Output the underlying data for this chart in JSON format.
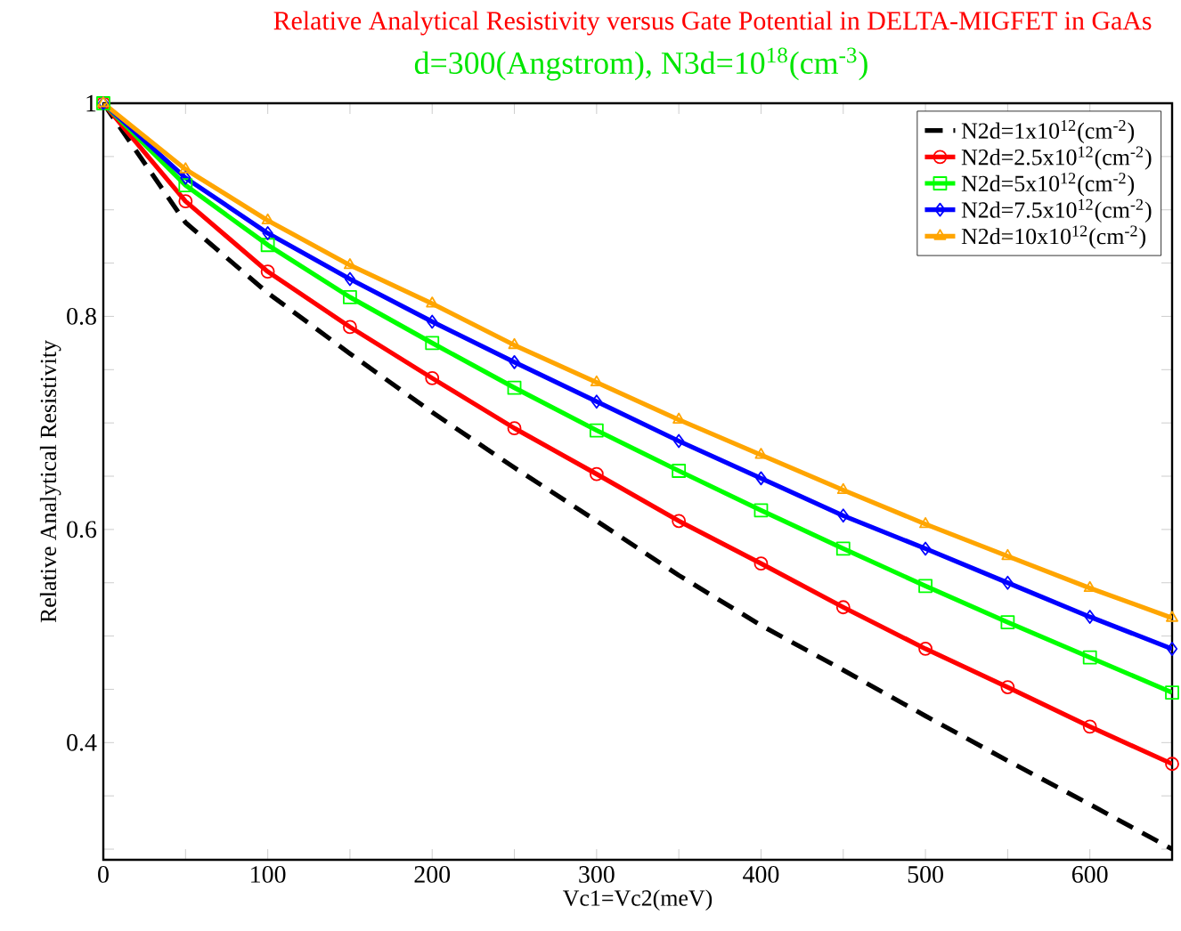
{
  "chart_data": {
    "type": "line",
    "title": "Relative Analytical Resistivity versus Gate Potential in DELTA-MIGFET in GaAs",
    "subtitle": "d=300(Angstrom), N3d=10$^{18}$(cm$^{-3}$)",
    "xlabel": "Vc1=Vc2(meV)",
    "ylabel": "Relative Analytical Resistivity",
    "x": [
      0,
      50,
      100,
      150,
      200,
      250,
      300,
      350,
      400,
      450,
      500,
      550,
      600,
      650
    ],
    "series": [
      {
        "name": "N2d=1x10$^{12}$(cm$^{-2}$)",
        "color": "#000000",
        "line_style": "dashed",
        "marker": "none",
        "values": [
          1,
          0.888,
          0.822,
          0.765,
          0.71,
          0.658,
          0.608,
          0.557,
          0.51,
          0.468,
          0.425,
          0.383,
          0.342,
          0.3
        ]
      },
      {
        "name": "N2d=2.5x10$^{12}$(cm$^{-2}$)",
        "color": "#ff0000",
        "line_style": "solid",
        "marker": "circle",
        "values": [
          1,
          0.908,
          0.842,
          0.79,
          0.742,
          0.695,
          0.652,
          0.608,
          0.568,
          0.527,
          0.488,
          0.452,
          0.415,
          0.38
        ]
      },
      {
        "name": "N2d=5x10$^{12}$(cm$^{-2}$)",
        "color": "#00ff00",
        "line_style": "solid",
        "marker": "square",
        "values": [
          1,
          0.923,
          0.867,
          0.818,
          0.775,
          0.733,
          0.693,
          0.655,
          0.618,
          0.582,
          0.547,
          0.513,
          0.48,
          0.447
        ]
      },
      {
        "name": "N2d=7.5x10$^{12}$(cm$^{-2}$)",
        "color": "#0000ff",
        "line_style": "solid",
        "marker": "diamond",
        "values": [
          1,
          0.93,
          0.878,
          0.835,
          0.795,
          0.757,
          0.72,
          0.683,
          0.648,
          0.613,
          0.582,
          0.55,
          0.518,
          0.488
        ]
      },
      {
        "name": "N2d=10x10$^{12}$(cm$^{-2}$)",
        "color": "#ffa500",
        "line_style": "solid",
        "marker": "triangle",
        "values": [
          1,
          0.938,
          0.89,
          0.848,
          0.812,
          0.773,
          0.738,
          0.703,
          0.67,
          0.637,
          0.605,
          0.575,
          0.545,
          0.517
        ]
      }
    ],
    "xlim": [
      0,
      650
    ],
    "ylim": [
      0.29,
      1
    ],
    "xticks": [
      0,
      {
        "value": 50,
        "label": null
      },
      100,
      {
        "value": 150,
        "label": null
      },
      200,
      {
        "value": 250,
        "label": null
      },
      300,
      {
        "value": 350,
        "label": null
      },
      400,
      {
        "value": 450,
        "label": null
      },
      500,
      {
        "value": 550,
        "label": null
      },
      600,
      {
        "value": 650,
        "label": null
      }
    ],
    "yticks": [
      {
        "value": 0.3,
        "label": null
      },
      {
        "value": 0.35,
        "label": null
      },
      0.4,
      {
        "value": 0.45,
        "label": null
      },
      {
        "value": 0.5,
        "label": null
      },
      {
        "value": 0.55,
        "label": null
      },
      0.6,
      {
        "value": 0.65,
        "label": null
      },
      {
        "value": 0.7,
        "label": null
      },
      {
        "value": 0.75,
        "label": null
      },
      0.8,
      {
        "value": 0.85,
        "label": null
      },
      {
        "value": 0.9,
        "label": null
      },
      {
        "value": 0.95,
        "label": null
      },
      1
    ],
    "grid": false,
    "legend": "top right"
  }
}
